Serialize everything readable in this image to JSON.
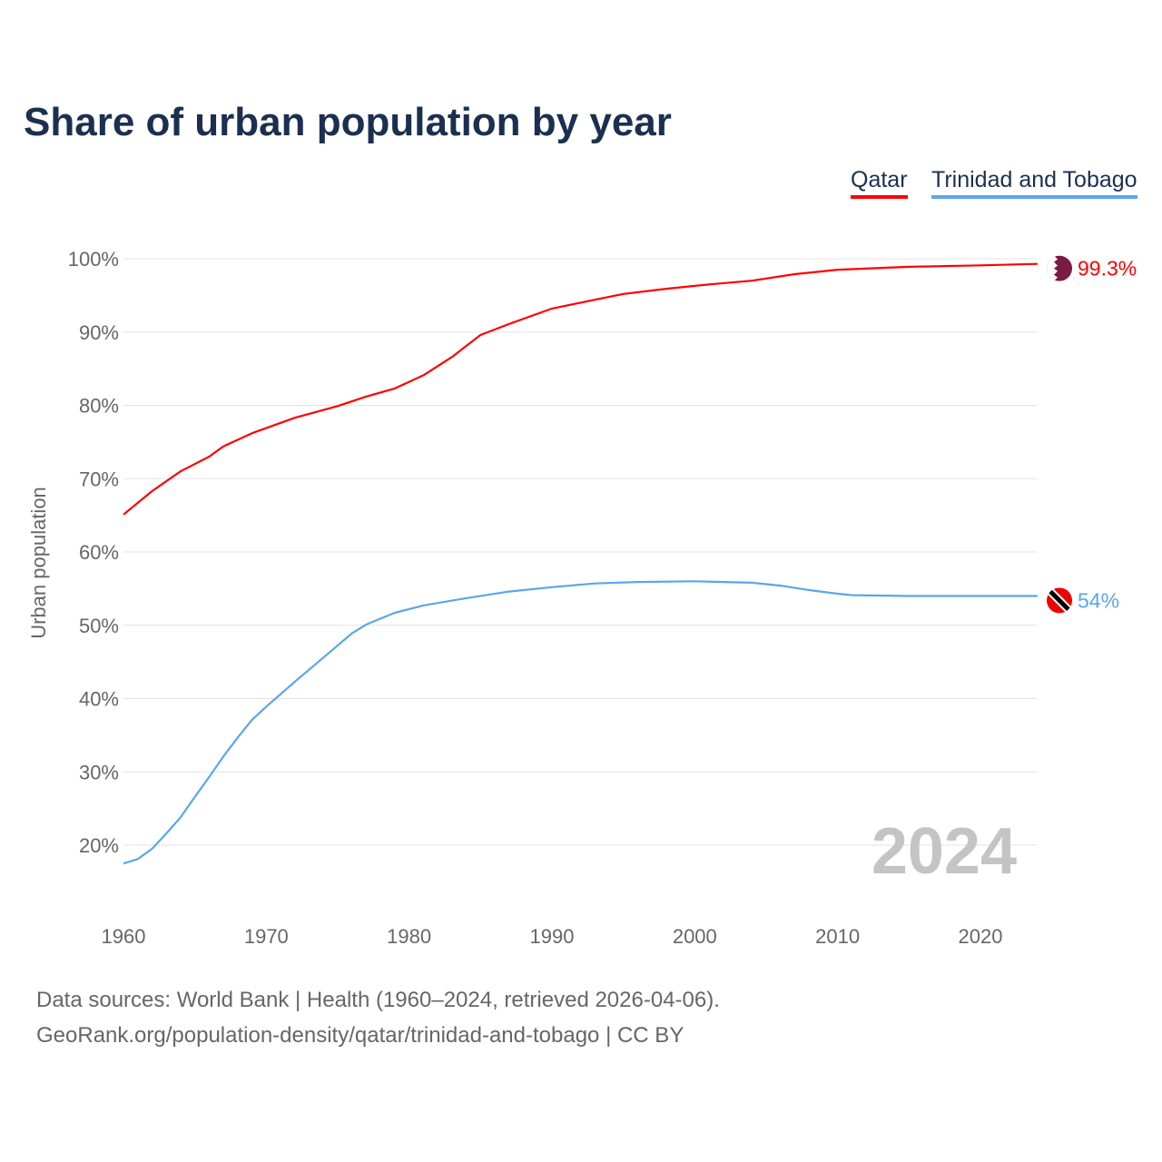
{
  "chart_data": {
    "type": "line",
    "title": "Share of urban population by year",
    "ylabel": "Urban population",
    "xlabel": "",
    "ylim": [
      10,
      100
    ],
    "xlim": [
      1960,
      2024
    ],
    "yticks": [
      20,
      30,
      40,
      50,
      60,
      70,
      80,
      90,
      100
    ],
    "ytick_labels": [
      "20%",
      "30%",
      "40%",
      "50%",
      "60%",
      "70%",
      "80%",
      "90%",
      "100%"
    ],
    "xticks": [
      1960,
      1970,
      1980,
      1990,
      2000,
      2010,
      2020
    ],
    "xtick_labels": [
      "1960",
      "1970",
      "1980",
      "1990",
      "2000",
      "2010",
      "2020"
    ],
    "year_label": "2024",
    "legend_position": "top-right",
    "series": [
      {
        "name": "Qatar",
        "color": "#ff0000",
        "end_label": "99.3%",
        "flag": "qatar-flag",
        "x": [
          1960,
          1962,
          1964,
          1966,
          1967,
          1969,
          1972,
          1975,
          1977,
          1979,
          1981,
          1983,
          1985,
          1987,
          1990,
          1993,
          1995,
          1998,
          2001,
          2004,
          2007,
          2010,
          2015,
          2020,
          2024
        ],
        "y": [
          65.1,
          68.3,
          71.0,
          73.0,
          74.4,
          76.2,
          78.3,
          79.9,
          81.2,
          82.3,
          84.1,
          86.6,
          89.6,
          91.1,
          93.2,
          94.4,
          95.2,
          95.9,
          96.5,
          97.0,
          97.9,
          98.5,
          98.9,
          99.1,
          99.3
        ]
      },
      {
        "name": "Trinidad and Tobago",
        "color": "#5aa6ea",
        "end_label": "54%",
        "flag": "trinidad-and-tobago-flag",
        "x": [
          1960,
          1961,
          1962,
          1963,
          1964,
          1965,
          1966,
          1967,
          1968,
          1969,
          1970,
          1972,
          1974,
          1976,
          1977,
          1979,
          1981,
          1984,
          1987,
          1990,
          1993,
          1996,
          2000,
          2002,
          2004,
          2006,
          2008,
          2010,
          2011,
          2015,
          2020,
          2024
        ],
        "y": [
          17.5,
          18.1,
          19.5,
          21.6,
          23.8,
          26.6,
          29.3,
          32.1,
          34.7,
          37.1,
          38.9,
          42.3,
          45.6,
          48.9,
          50.1,
          51.7,
          52.7,
          53.7,
          54.6,
          55.2,
          55.7,
          55.9,
          56.0,
          55.9,
          55.8,
          55.4,
          54.8,
          54.3,
          54.1,
          54.0,
          54.0,
          54.0
        ]
      }
    ]
  },
  "footer": {
    "line1": "Data sources: World Bank | Health (1960–2024, retrieved 2026-04-06).",
    "line2": "GeoRank.org/population-density/qatar/trinidad-and-tobago | CC BY"
  }
}
